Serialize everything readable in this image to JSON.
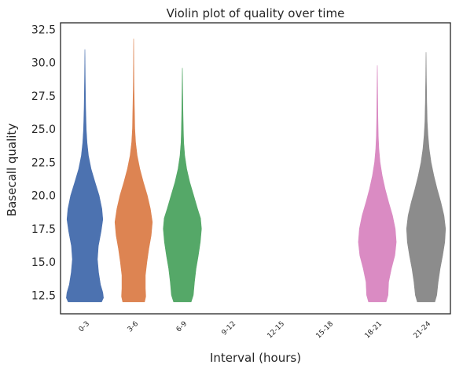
{
  "chart_data": {
    "type": "violin",
    "title": "Violin plot of quality over time",
    "xlabel": "Interval (hours)",
    "ylabel": "Basecall quality",
    "categories": [
      "0-3",
      "3-6",
      "6-9",
      "9-12",
      "12-15",
      "15-18",
      "18-21",
      "21-24"
    ],
    "ylim": [
      11.1,
      33.0
    ],
    "yticks": [
      "12.5",
      "15.0",
      "17.5",
      "20.0",
      "22.5",
      "25.0",
      "27.5",
      "30.0",
      "32.5"
    ],
    "grid": false,
    "series": [
      {
        "category": "0-3",
        "color": "#4c72b0",
        "min": 12.0,
        "max": 31.0,
        "density": [
          [
            12.0,
            0.86
          ],
          [
            12.3,
            0.95
          ],
          [
            12.7,
            0.92
          ],
          [
            13.3,
            0.8
          ],
          [
            14.2,
            0.7
          ],
          [
            15.2,
            0.64
          ],
          [
            16.2,
            0.69
          ],
          [
            17.3,
            0.83
          ],
          [
            18.2,
            0.92
          ],
          [
            19.0,
            0.87
          ],
          [
            20.0,
            0.73
          ],
          [
            21.0,
            0.52
          ],
          [
            22.0,
            0.32
          ],
          [
            23.0,
            0.18
          ],
          [
            24.0,
            0.11
          ],
          [
            25.0,
            0.07
          ],
          [
            26.5,
            0.04
          ],
          [
            28.0,
            0.025
          ],
          [
            30.0,
            0.01
          ],
          [
            31.0,
            0.0
          ]
        ]
      },
      {
        "category": "3-6",
        "color": "#dd8452",
        "min": 12.0,
        "max": 31.8,
        "density": [
          [
            12.0,
            0.56
          ],
          [
            12.4,
            0.62
          ],
          [
            13.0,
            0.6
          ],
          [
            14.0,
            0.6
          ],
          [
            15.0,
            0.68
          ],
          [
            16.0,
            0.78
          ],
          [
            17.0,
            0.9
          ],
          [
            18.0,
            0.96
          ],
          [
            19.0,
            0.86
          ],
          [
            20.0,
            0.7
          ],
          [
            21.0,
            0.5
          ],
          [
            22.0,
            0.32
          ],
          [
            23.0,
            0.18
          ],
          [
            24.0,
            0.1
          ],
          [
            25.0,
            0.06
          ],
          [
            26.5,
            0.04
          ],
          [
            28.0,
            0.02
          ],
          [
            30.0,
            0.01
          ],
          [
            31.8,
            0.0
          ]
        ]
      },
      {
        "category": "6-9",
        "color": "#55a868",
        "min": 12.0,
        "max": 29.6,
        "density": [
          [
            12.0,
            0.45
          ],
          [
            12.5,
            0.56
          ],
          [
            13.5,
            0.62
          ],
          [
            14.5,
            0.7
          ],
          [
            15.5,
            0.82
          ],
          [
            16.5,
            0.92
          ],
          [
            17.5,
            0.98
          ],
          [
            18.3,
            0.93
          ],
          [
            19.0,
            0.78
          ],
          [
            20.0,
            0.58
          ],
          [
            21.0,
            0.38
          ],
          [
            22.0,
            0.22
          ],
          [
            23.0,
            0.12
          ],
          [
            24.0,
            0.07
          ],
          [
            25.0,
            0.05
          ],
          [
            26.5,
            0.03
          ],
          [
            28.0,
            0.015
          ],
          [
            29.6,
            0.0
          ]
        ]
      },
      {
        "category": "9-12",
        "color": "",
        "density": []
      },
      {
        "category": "12-15",
        "color": "",
        "density": []
      },
      {
        "category": "15-18",
        "color": "",
        "density": []
      },
      {
        "category": "18-21",
        "color": "#da8bc3",
        "min": 12.0,
        "max": 29.8,
        "density": [
          [
            12.0,
            0.45
          ],
          [
            12.5,
            0.55
          ],
          [
            13.5,
            0.58
          ],
          [
            14.5,
            0.72
          ],
          [
            15.5,
            0.9
          ],
          [
            16.5,
            0.97
          ],
          [
            17.5,
            0.92
          ],
          [
            18.5,
            0.78
          ],
          [
            19.5,
            0.58
          ],
          [
            20.5,
            0.4
          ],
          [
            21.5,
            0.25
          ],
          [
            22.5,
            0.14
          ],
          [
            23.5,
            0.08
          ],
          [
            24.5,
            0.05
          ],
          [
            26.0,
            0.03
          ],
          [
            28.0,
            0.015
          ],
          [
            29.8,
            0.0
          ]
        ]
      },
      {
        "category": "21-24",
        "color": "#8c8c8c",
        "min": 12.0,
        "max": 30.8,
        "density": [
          [
            12.0,
            0.45
          ],
          [
            12.5,
            0.55
          ],
          [
            13.5,
            0.62
          ],
          [
            14.5,
            0.72
          ],
          [
            15.5,
            0.85
          ],
          [
            16.5,
            0.96
          ],
          [
            17.5,
            1.0
          ],
          [
            18.5,
            0.92
          ],
          [
            19.5,
            0.76
          ],
          [
            20.5,
            0.57
          ],
          [
            21.5,
            0.4
          ],
          [
            22.5,
            0.26
          ],
          [
            23.5,
            0.16
          ],
          [
            24.5,
            0.1
          ],
          [
            25.5,
            0.06
          ],
          [
            27.0,
            0.035
          ],
          [
            28.5,
            0.02
          ],
          [
            30.8,
            0.0
          ]
        ]
      }
    ]
  }
}
